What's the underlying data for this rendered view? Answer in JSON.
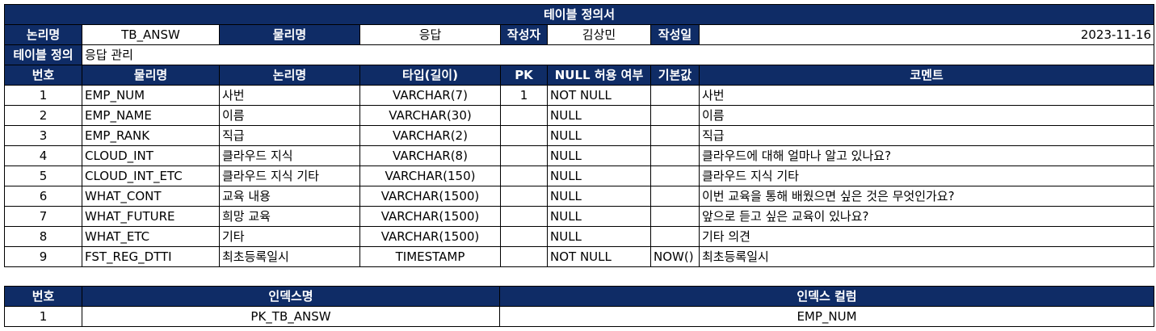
{
  "title": "테이블 정의서",
  "meta": {
    "logical_label": "논리명",
    "logical_value": "TB_ANSW",
    "physical_label": "물리명",
    "physical_value": "응답",
    "author_label": "작성자",
    "author_value": "김상민",
    "date_label": "작성일",
    "date_value": "2023-11-16",
    "table_def_label": "테이블 정의",
    "table_def_value": "응답 관리"
  },
  "columns_header": [
    "번호",
    "물리명",
    "논리명",
    "타입(길이)",
    "PK",
    "NULL 허용 여부",
    "기본값",
    "코멘트"
  ],
  "rows": [
    {
      "no": "1",
      "physical": "EMP_NUM",
      "logical": "사번",
      "type": "VARCHAR(7)",
      "pk": "1",
      "nullable": "NOT NULL",
      "default": "",
      "comment": "사번"
    },
    {
      "no": "2",
      "physical": "EMP_NAME",
      "logical": "이름",
      "type": "VARCHAR(30)",
      "pk": "",
      "nullable": "NULL",
      "default": "",
      "comment": "이름"
    },
    {
      "no": "3",
      "physical": "EMP_RANK",
      "logical": "직급",
      "type": "VARCHAR(2)",
      "pk": "",
      "nullable": "NULL",
      "default": "",
      "comment": "직급"
    },
    {
      "no": "4",
      "physical": "CLOUD_INT",
      "logical": "클라우드 지식",
      "type": "VARCHAR(8)",
      "pk": "",
      "nullable": "NULL",
      "default": "",
      "comment": "클라우드에 대해 얼마나 알고 있나요?"
    },
    {
      "no": "5",
      "physical": "CLOUD_INT_ETC",
      "logical": "클라우드 지식 기타",
      "type": "VARCHAR(150)",
      "pk": "",
      "nullable": "NULL",
      "default": "",
      "comment": "클라우드 지식 기타"
    },
    {
      "no": "6",
      "physical": "WHAT_CONT",
      "logical": "교육 내용",
      "type": "VARCHAR(1500)",
      "pk": "",
      "nullable": "NULL",
      "default": "",
      "comment": "이번 교육을 통해 배웠으면 싶은 것은 무엇인가요?"
    },
    {
      "no": "7",
      "physical": "WHAT_FUTURE",
      "logical": "희망 교육",
      "type": "VARCHAR(1500)",
      "pk": "",
      "nullable": "NULL",
      "default": "",
      "comment": "앞으로 듣고 싶은 교육이 있나요?"
    },
    {
      "no": "8",
      "physical": "WHAT_ETC",
      "logical": "기타",
      "type": "VARCHAR(1500)",
      "pk": "",
      "nullable": "NULL",
      "default": "",
      "comment": "기타 의견"
    },
    {
      "no": "9",
      "physical": "FST_REG_DTTI",
      "logical": "최초등록일시",
      "type": "TIMESTAMP",
      "pk": "",
      "nullable": "NOT NULL",
      "default": "NOW()",
      "comment": "최초등록일시"
    }
  ],
  "index_header": [
    "번호",
    "인덱스명",
    "인덱스 컬럼"
  ],
  "index_rows": [
    {
      "no": "1",
      "name": "PK_TB_ANSW",
      "column": "EMP_NUM"
    }
  ]
}
